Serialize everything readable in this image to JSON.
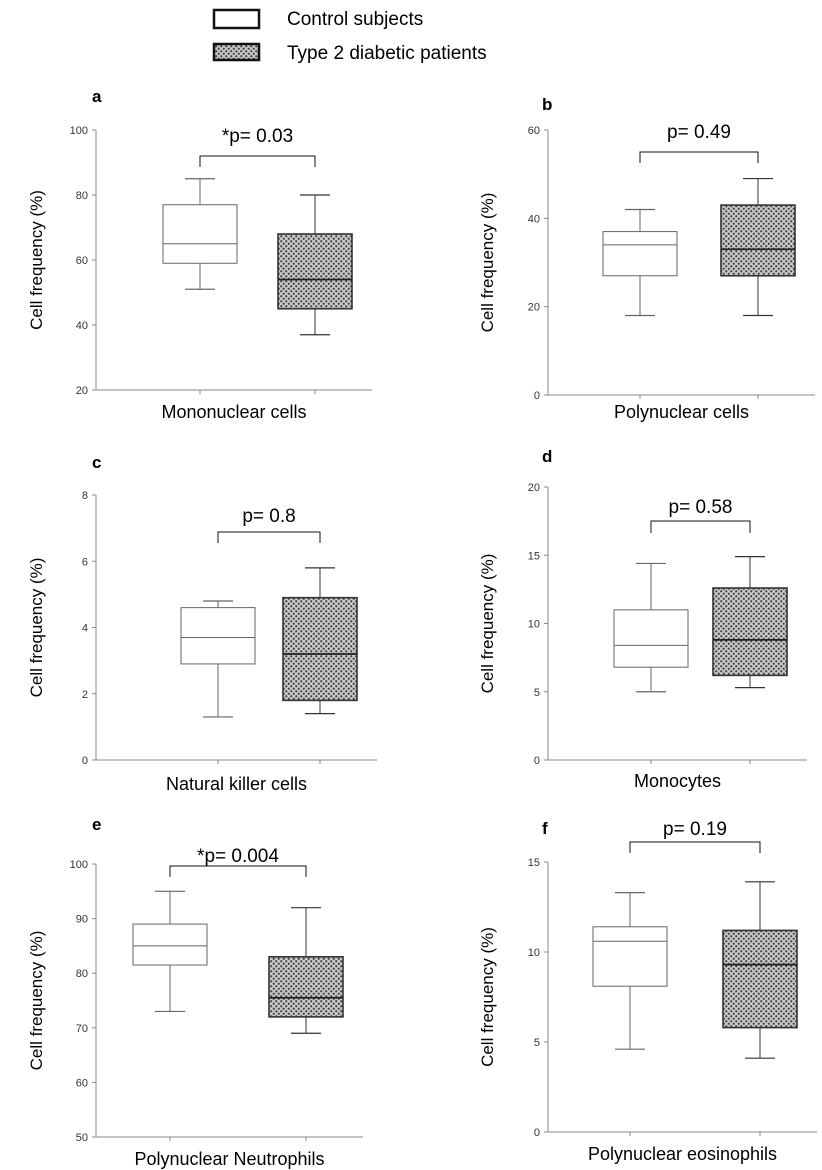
{
  "legend": {
    "control_label": "Control subjects",
    "diabetic_label": "Type 2 diabetic patients"
  },
  "colors": {
    "control_fill": "#ffffff",
    "diabetic_fill": "#bdbdbd",
    "stroke": "#444444"
  },
  "chart_data": [
    {
      "type": "box",
      "panel": "a",
      "xlabel": "Mononuclear cells",
      "ylabel": "Cell frequency (%)",
      "ylim": [
        20,
        100
      ],
      "yticks": [
        20,
        40,
        60,
        80,
        100
      ],
      "p_value": "*p= 0.03",
      "groups": [
        {
          "name": "Control subjects",
          "min": 51,
          "q1": 59,
          "median": 65,
          "q3": 77,
          "max": 85
        },
        {
          "name": "Type 2 diabetic patients",
          "min": 37,
          "q1": 45,
          "median": 54,
          "q3": 68,
          "max": 80
        }
      ]
    },
    {
      "type": "box",
      "panel": "b",
      "xlabel": "Polynuclear cells",
      "ylabel": "Cell frequency (%)",
      "ylim": [
        0,
        60
      ],
      "yticks": [
        0,
        20,
        40,
        60
      ],
      "p_value": "p= 0.49",
      "groups": [
        {
          "name": "Control subjects",
          "min": 18,
          "q1": 27,
          "median": 34,
          "q3": 37,
          "max": 42
        },
        {
          "name": "Type 2 diabetic patients",
          "min": 18,
          "q1": 27,
          "median": 33,
          "q3": 43,
          "max": 49
        }
      ]
    },
    {
      "type": "box",
      "panel": "c",
      "xlabel": "Natural killer cells",
      "ylabel": "Cell frequency (%)",
      "ylim": [
        0,
        8
      ],
      "yticks": [
        0,
        2,
        4,
        6,
        8
      ],
      "p_value": "p= 0.8",
      "groups": [
        {
          "name": "Control subjects",
          "min": 1.3,
          "q1": 2.9,
          "median": 3.7,
          "q3": 4.6,
          "max": 4.8
        },
        {
          "name": "Type 2 diabetic patients",
          "min": 1.4,
          "q1": 1.8,
          "median": 3.2,
          "q3": 4.9,
          "max": 5.8
        }
      ]
    },
    {
      "type": "box",
      "panel": "d",
      "xlabel": "Monocytes",
      "ylabel": "Cell frequency (%)",
      "ylim": [
        0,
        20
      ],
      "yticks": [
        0,
        5,
        10,
        15,
        20
      ],
      "p_value": "p= 0.58",
      "groups": [
        {
          "name": "Control subjects",
          "min": 5,
          "q1": 6.8,
          "median": 8.4,
          "q3": 11,
          "max": 14.4
        },
        {
          "name": "Type 2 diabetic patients",
          "min": 5.3,
          "q1": 6.2,
          "median": 8.8,
          "q3": 12.6,
          "max": 14.9
        }
      ]
    },
    {
      "type": "box",
      "panel": "e",
      "xlabel": "Polynuclear Neutrophils",
      "ylabel": "Cell frequency (%)",
      "ylim": [
        50,
        100
      ],
      "yticks": [
        50,
        60,
        70,
        80,
        90,
        100
      ],
      "p_value": "*p= 0.004",
      "groups": [
        {
          "name": "Control subjects",
          "min": 73,
          "q1": 81.5,
          "median": 85,
          "q3": 89,
          "max": 95
        },
        {
          "name": "Type 2 diabetic patients",
          "min": 69,
          "q1": 72,
          "median": 75.5,
          "q3": 83,
          "max": 92
        }
      ]
    },
    {
      "type": "box",
      "panel": "f",
      "xlabel": "Polynuclear eosinophils",
      "ylabel": "Cell frequency (%)",
      "ylim": [
        0,
        15
      ],
      "yticks": [
        0,
        5,
        10,
        15
      ],
      "p_value": "p= 0.19",
      "groups": [
        {
          "name": "Control subjects",
          "min": 4.6,
          "q1": 8.1,
          "median": 10.6,
          "q3": 11.4,
          "max": 13.3
        },
        {
          "name": "Type 2 diabetic patients",
          "min": 4.1,
          "q1": 5.8,
          "median": 9.3,
          "q3": 11.2,
          "max": 13.9
        }
      ]
    }
  ]
}
